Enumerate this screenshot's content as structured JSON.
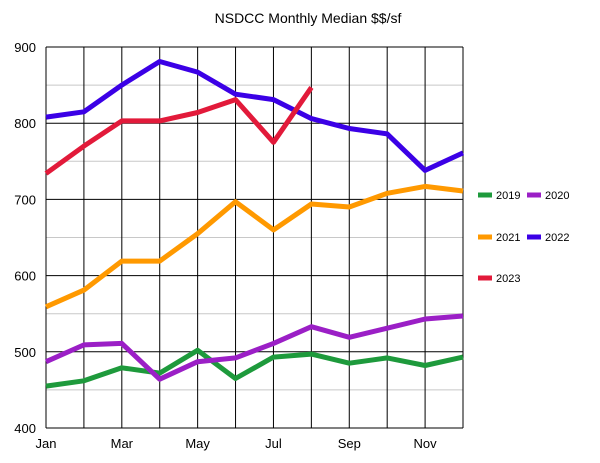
{
  "chart_data": {
    "type": "line",
    "title": "NSDCC Monthly Median $$/sf",
    "xlabel": "",
    "ylabel": "",
    "categories": [
      "Jan",
      "Feb",
      "Mar",
      "Apr",
      "May",
      "Jun",
      "Jul",
      "Aug",
      "Sep",
      "Oct",
      "Nov",
      "Dec"
    ],
    "x_tick_labels": [
      "Jan",
      "",
      "Mar",
      "",
      "May",
      "",
      "Jul",
      "",
      "Sep",
      "",
      "Nov",
      ""
    ],
    "ylim": [
      400,
      900
    ],
    "y_ticks": [
      400,
      500,
      600,
      700,
      800,
      900
    ],
    "grid": true,
    "legend_position": "right",
    "series": [
      {
        "name": "2019",
        "color": "#1e9a3c",
        "values": [
          455,
          462,
          479,
          472,
          502,
          465,
          493,
          497,
          485,
          492,
          482,
          493
        ]
      },
      {
        "name": "2020",
        "color": "#9b1fc6",
        "values": [
          487,
          509,
          511,
          464,
          487,
          492,
          511,
          533,
          519,
          531,
          543,
          547
        ]
      },
      {
        "name": "2021",
        "color": "#ff9900",
        "values": [
          559,
          581,
          619,
          619,
          655,
          697,
          660,
          694,
          690,
          708,
          717,
          711
        ]
      },
      {
        "name": "2022",
        "color": "#3b00e6",
        "values": [
          808,
          815,
          850,
          881,
          867,
          838,
          831,
          806,
          793,
          786,
          738,
          761
        ]
      },
      {
        "name": "2023",
        "color": "#e21a3a",
        "values": [
          734,
          770,
          803,
          803,
          814,
          831,
          775,
          847,
          null,
          null,
          null,
          null
        ]
      }
    ]
  }
}
